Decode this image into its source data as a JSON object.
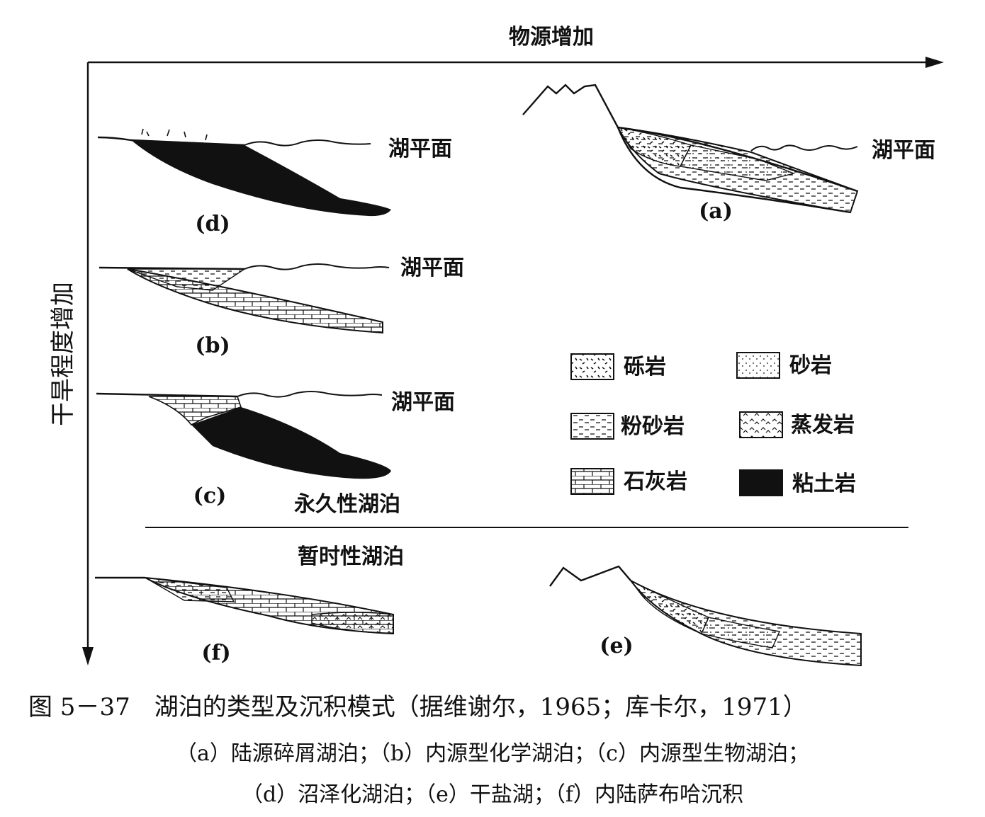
{
  "axes": {
    "x_label": "物源增加",
    "y_label": "干旱程度增加"
  },
  "lake_level": "湖平面",
  "panel_labels": {
    "a": "(a)",
    "b": "(b)",
    "c": "(c)",
    "d": "(d)",
    "e": "(e)",
    "f": "(f)"
  },
  "section_labels": {
    "permanent": "永久性湖泊",
    "temporary": "暂时性湖泊"
  },
  "legend": [
    {
      "pattern": "conglomerate",
      "label": "砾岩"
    },
    {
      "pattern": "sandstone",
      "label": "砂岩"
    },
    {
      "pattern": "siltstone",
      "label": "粉砂岩"
    },
    {
      "pattern": "evaporite",
      "label": "蒸发岩"
    },
    {
      "pattern": "limestone",
      "label": "石灰岩"
    },
    {
      "pattern": "claystone",
      "label": "粘土岩"
    }
  ],
  "caption": {
    "title": "图 5－37　湖泊的类型及沉积模式（据维谢尔，1965；库卡尔，1971）",
    "line1": "（a）陆源碎屑湖泊；（b）内源型化学湖泊；（c）内源型生物湖泊；",
    "line2": "（d）沼泽化湖泊；（e）干盐湖；（f）内陆萨布哈沉积"
  }
}
